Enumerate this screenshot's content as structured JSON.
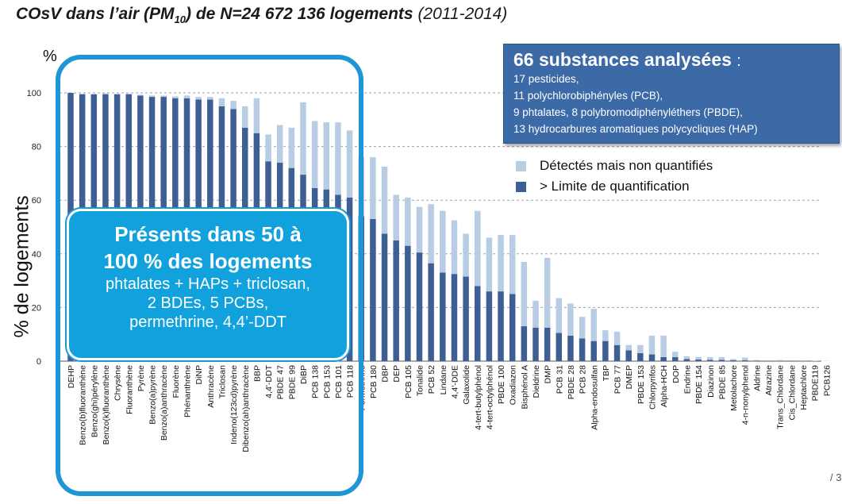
{
  "header": {
    "title_main": "COsV dans l’air (PM",
    "title_sub": "10",
    "title_rest": ") de N=24 672 136 logements",
    "title_years": "(2011-2014)"
  },
  "info_box": {
    "heading": "66 substances analysées",
    "colon": ":",
    "lines": [
      "17 pesticides,",
      "11 polychlorobiphényles (PCB),",
      "9 phtalates, 8 polybromodiphényléthers (PBDE),",
      "13 hydrocarbures aromatiques polycycliques (HAP)"
    ]
  },
  "highlight": {
    "line1": "Présents dans 50 à",
    "line2": "100 % des logements",
    "details": [
      "phtalates + HAPs + triclosan,",
      "2 BDEs, 5 PCBs,",
      "permethrine, 4,4’-DDT"
    ]
  },
  "page_number": "/ 3",
  "chart_data": {
    "type": "bar",
    "stacked": true,
    "ylabel": "% de logements",
    "y_unit_label": "%",
    "ylim": [
      0,
      100
    ],
    "yticks": [
      0,
      20,
      40,
      60,
      80,
      100
    ],
    "grid": true,
    "legend_position": "right",
    "colors": {
      "quantified": "#3e5f94",
      "detected": "#b8cce4"
    },
    "categories": [
      "DEHP",
      "Benzo(b)fluoranthène",
      "Benzo(ghi)pérylène",
      "Benzo(k)fluoranthène",
      "Chrysène",
      "Fluoranthène",
      "Pyrène",
      "Benzo(a)pyrène",
      "Benzo(a)anthracène",
      "Fluorène",
      "Phénanthrène",
      "DiNP",
      "Anthracène",
      "Triclosan",
      "Indeno(123cd)pyrène",
      "Dibenzo(ah)anthracène",
      "BBP",
      "4,4'-DDT",
      "PBDE 47",
      "PBDE 99",
      "DiBP",
      "PCB 138",
      "PCB 153",
      "PCB 101",
      "PCB 118",
      "Perméthrine",
      "PCB 180",
      "DBP",
      "DEP",
      "PCB 105",
      "Tonalide",
      "PCB 52",
      "Lindane",
      "4,4'-DDE",
      "Galaxolide",
      "4-tert-butylphénol",
      "4-tert-octylphénol",
      "PBDE 100",
      "Oxadiazon",
      "Bisphénol A",
      "Dieldrine",
      "DMP",
      "PCB 31",
      "PBDE 28",
      "PCB 28",
      "Alpha-endosulfan",
      "TBP",
      "PCB 77",
      "DMEP",
      "PBDE 153",
      "Chlorpyrifos",
      "Alpha-HCH",
      "DOP",
      "Endrine",
      "PBDE 154",
      "Diazinon",
      "PBDE 85",
      "Metolachore",
      "4-n-nonylphenol",
      "Aldrine",
      "Atrazine",
      "Trans_Chlordane",
      "Cis_Chlordane",
      "Heptachlore",
      "PBDE119",
      "PCB126"
    ],
    "series": [
      {
        "name": "Détectés mais non quantifiés",
        "values": [
          0,
          0.2,
          0,
          0.3,
          0,
          0.2,
          0.3,
          0.5,
          0.5,
          0.7,
          1,
          1,
          1,
          3,
          3,
          8,
          13,
          10,
          14,
          15,
          27,
          25,
          25,
          27,
          25,
          22,
          23,
          25,
          17,
          18,
          17,
          22,
          23,
          20,
          16,
          28,
          20,
          21,
          22,
          24,
          10,
          26,
          13,
          12,
          8,
          12,
          4,
          5,
          2,
          3,
          7,
          8,
          2,
          1,
          1,
          1,
          1,
          0.5,
          1,
          0.2,
          0.2,
          0.3,
          0.2,
          0.1,
          0.1,
          0.1
        ]
      },
      {
        "name": "> Limite de quantification",
        "values": [
          100,
          99.5,
          99.5,
          99.5,
          99.5,
          99.5,
          99,
          98.5,
          98.5,
          98,
          98,
          97.5,
          97.5,
          95,
          94,
          87,
          85,
          74.5,
          74,
          72,
          69.5,
          64.5,
          64,
          62,
          61,
          54,
          53,
          47.5,
          45,
          43,
          40.5,
          36.5,
          33,
          32.5,
          31.5,
          28,
          26,
          26,
          25,
          13,
          12.5,
          12.5,
          10.5,
          9.5,
          8.5,
          7.5,
          7.5,
          6,
          4,
          3,
          2.5,
          1.5,
          1.5,
          0.8,
          0.6,
          0.5,
          0.5,
          0.3,
          0.3,
          0.2,
          0.1,
          0.1,
          0.1,
          0.1,
          0,
          0
        ]
      }
    ]
  }
}
